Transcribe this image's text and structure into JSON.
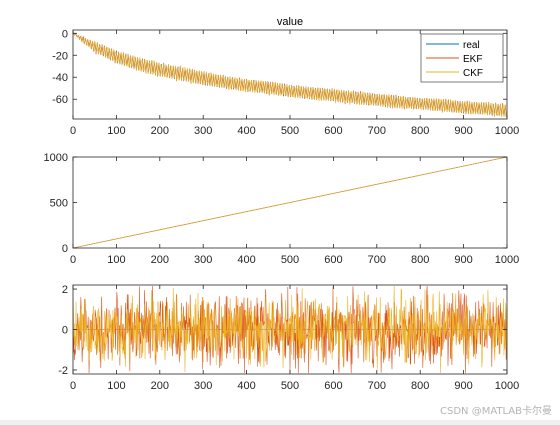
{
  "figure": {
    "watermark": "CSDN @MATLAB卡尔曼"
  },
  "chart_data": [
    {
      "type": "line",
      "title": "value",
      "xlabel": "",
      "ylabel": "",
      "xlim": [
        0,
        1000
      ],
      "ylim": [
        -78,
        3
      ],
      "xticks": [
        0,
        100,
        200,
        300,
        400,
        500,
        600,
        700,
        800,
        900,
        1000
      ],
      "yticks": [
        0,
        -20,
        -40,
        -60
      ],
      "grid": false,
      "legend": {
        "location": "top-right",
        "entries": [
          "real",
          "EKF",
          "CKF"
        ]
      },
      "series": [
        {
          "name": "real",
          "color": "#0072bd",
          "pattern": "decaying oscillation",
          "envelope_upper": [
            0,
            -8,
            -16,
            -22,
            -27,
            -31,
            -35,
            -39,
            -42,
            -44,
            -47,
            -49,
            -51,
            -53,
            -55,
            -57,
            -59,
            -60,
            -62,
            -63,
            -65
          ],
          "envelope_lower": [
            0,
            -17,
            -27,
            -34,
            -39,
            -43,
            -47,
            -50,
            -53,
            -55,
            -58,
            -60,
            -62,
            -64,
            -66,
            -68,
            -69,
            -71,
            -73,
            -74,
            -76
          ]
        },
        {
          "name": "EKF",
          "color": "#d95319",
          "pattern": "decaying oscillation",
          "envelope_upper": [
            0,
            -8,
            -16,
            -22,
            -27,
            -31,
            -35,
            -39,
            -42,
            -44,
            -47,
            -49,
            -51,
            -53,
            -55,
            -57,
            -59,
            -60,
            -62,
            -63,
            -65
          ],
          "envelope_lower": [
            0,
            -17,
            -27,
            -34,
            -39,
            -43,
            -47,
            -50,
            -53,
            -55,
            -58,
            -60,
            -62,
            -64,
            -66,
            -68,
            -69,
            -71,
            -73,
            -74,
            -76
          ]
        },
        {
          "name": "CKF",
          "color": "#edb120",
          "pattern": "decaying oscillation",
          "envelope_upper": [
            0,
            -8,
            -16,
            -22,
            -27,
            -31,
            -35,
            -39,
            -42,
            -44,
            -47,
            -49,
            -51,
            -53,
            -55,
            -57,
            -59,
            -60,
            -62,
            -63,
            -65
          ],
          "envelope_lower": [
            0,
            -17,
            -27,
            -34,
            -39,
            -43,
            -47,
            -50,
            -53,
            -55,
            -58,
            -60,
            -62,
            -64,
            -66,
            -68,
            -69,
            -71,
            -73,
            -74,
            -76
          ]
        }
      ]
    },
    {
      "type": "line",
      "title": "",
      "xlabel": "",
      "ylabel": "",
      "xlim": [
        0,
        1000
      ],
      "ylim": [
        0,
        1000
      ],
      "xticks": [
        0,
        100,
        200,
        300,
        400,
        500,
        600,
        700,
        800,
        900,
        1000
      ],
      "yticks": [
        0,
        500,
        1000
      ],
      "grid": false,
      "series": [
        {
          "color": "#0072bd",
          "x": [
            0,
            1000
          ],
          "y": [
            0,
            1000
          ]
        },
        {
          "color": "#d95319",
          "x": [
            0,
            1000
          ],
          "y": [
            0,
            1000
          ]
        },
        {
          "color": "#edb120",
          "x": [
            0,
            1000
          ],
          "y": [
            0,
            1000
          ]
        }
      ]
    },
    {
      "type": "line",
      "title": "",
      "xlabel": "",
      "ylabel": "",
      "xlim": [
        0,
        1000
      ],
      "ylim": [
        -2.2,
        2.2
      ],
      "xticks": [
        0,
        100,
        200,
        300,
        400,
        500,
        600,
        700,
        800,
        900,
        1000
      ],
      "yticks": [
        2,
        0,
        -2
      ],
      "grid": false,
      "series": [
        {
          "color": "#0072bd",
          "pattern": "flat",
          "level": 0
        },
        {
          "color": "#d95319",
          "pattern": "noise",
          "amplitude": 2.0
        },
        {
          "color": "#edb120",
          "pattern": "noise",
          "amplitude": 1.8
        }
      ]
    }
  ]
}
